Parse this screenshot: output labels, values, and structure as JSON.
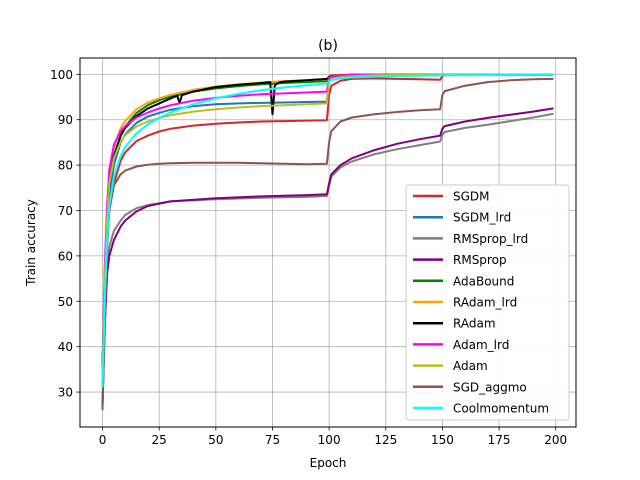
{
  "chart_data": {
    "type": "line",
    "title": "(b)",
    "xlabel": "Epoch",
    "ylabel": "Train accuracy",
    "xlim": [
      -9.95,
      208.95
    ],
    "ylim": [
      22.3,
      103.6
    ],
    "xticks": [
      0,
      25,
      50,
      75,
      100,
      125,
      150,
      175,
      200
    ],
    "yticks": [
      30,
      40,
      50,
      60,
      70,
      80,
      90,
      100
    ],
    "grid": true,
    "legend_position": "lower right",
    "series": [
      {
        "name": "SGDM",
        "color": "#d62728",
        "x": [
          0,
          1,
          2,
          3,
          5,
          8,
          10,
          15,
          20,
          25,
          30,
          40,
          50,
          60,
          70,
          80,
          90,
          99,
          100,
          101,
          105,
          110,
          120,
          130,
          140,
          149,
          150,
          151,
          160,
          180,
          199
        ],
        "y": [
          31,
          50,
          62,
          70,
          76,
          81,
          82.8,
          85.3,
          86.5,
          87.4,
          88,
          88.7,
          89.1,
          89.4,
          89.6,
          89.7,
          89.8,
          89.9,
          95.5,
          97.5,
          98.6,
          99,
          99.1,
          99,
          98.9,
          98.8,
          99.6,
          99.8,
          99.9,
          99.9,
          99.9
        ]
      },
      {
        "name": "SGDM_lrd",
        "color": "#1f77b4",
        "x": [
          0,
          1,
          2,
          3,
          5,
          8,
          10,
          15,
          20,
          25,
          30,
          40,
          50,
          60,
          70,
          80,
          90,
          99,
          100,
          101,
          105,
          110,
          120,
          150,
          199
        ],
        "y": [
          32,
          52,
          65,
          73,
          80,
          85,
          86.8,
          89.3,
          90.7,
          91.5,
          92.2,
          93,
          93.4,
          93.6,
          93.7,
          93.8,
          93.9,
          94,
          98.5,
          99.3,
          99.7,
          99.8,
          99.9,
          99.9,
          99.9
        ]
      },
      {
        "name": "RMSprop_lrd",
        "color": "#7f7f7f",
        "x": [
          0,
          1,
          2,
          3,
          5,
          8,
          10,
          15,
          20,
          30,
          50,
          70,
          90,
          99,
          100,
          101,
          105,
          110,
          120,
          130,
          140,
          149,
          150,
          151,
          160,
          170,
          180,
          190,
          199
        ],
        "y": [
          27,
          45,
          57,
          62,
          65.5,
          67.8,
          69,
          70.5,
          71.2,
          72,
          72.5,
          72.8,
          73,
          73.2,
          75.5,
          77.5,
          79.5,
          80.8,
          82.4,
          83.5,
          84.4,
          85.2,
          86.7,
          87.3,
          88.2,
          88.9,
          89.7,
          90.5,
          91.3
        ]
      },
      {
        "name": "RMSprop",
        "color": "#800080",
        "x": [
          0,
          1,
          2,
          3,
          5,
          8,
          10,
          15,
          20,
          30,
          50,
          70,
          90,
          99,
          100,
          101,
          105,
          110,
          120,
          130,
          140,
          149,
          150,
          151,
          160,
          170,
          180,
          190,
          199
        ],
        "y": [
          27,
          45,
          56,
          60,
          63.5,
          66.5,
          67.8,
          69.8,
          71,
          72,
          72.7,
          73.1,
          73.4,
          73.6,
          76,
          78,
          80,
          81.5,
          83.3,
          84.7,
          85.7,
          86.5,
          88,
          88.6,
          89.6,
          90.4,
          91.1,
          91.8,
          92.5
        ]
      },
      {
        "name": "AdaBound",
        "color": "#008000",
        "x": [
          0,
          1,
          2,
          3,
          5,
          8,
          10,
          15,
          20,
          25,
          30,
          40,
          50,
          60,
          70,
          80,
          90,
          99,
          100,
          101,
          105,
          110,
          120,
          150,
          199
        ],
        "y": [
          33,
          55,
          68,
          76,
          82,
          86.5,
          88.5,
          91.5,
          93.2,
          94.3,
          95.1,
          96.2,
          96.9,
          97.4,
          97.8,
          98.1,
          98.3,
          98.5,
          99.3,
          99.6,
          99.8,
          99.9,
          99.9,
          99.9,
          99.9
        ]
      },
      {
        "name": "RAdam_lrd",
        "color": "#ffa500",
        "x": [
          0,
          1,
          2,
          3,
          5,
          8,
          10,
          15,
          20,
          25,
          30,
          40,
          50,
          60,
          70,
          80,
          90,
          99,
          100,
          101,
          105,
          110,
          120,
          150,
          199
        ],
        "y": [
          34,
          57,
          70,
          78,
          84,
          88.2,
          89.7,
          92.3,
          93.8,
          94.7,
          95.5,
          96.6,
          97.3,
          97.8,
          98.2,
          98.5,
          98.7,
          98.9,
          99.6,
          99.8,
          99.9,
          99.9,
          99.9,
          99.9,
          99.9
        ]
      },
      {
        "name": "RAdam",
        "color": "#000000",
        "x": [
          0,
          1,
          2,
          3,
          5,
          8,
          10,
          15,
          20,
          25,
          30,
          33,
          34,
          35,
          40,
          50,
          60,
          70,
          74,
          75,
          76,
          78,
          80,
          90,
          99,
          100,
          101,
          105,
          110,
          120,
          150,
          199
        ],
        "y": [
          36,
          56,
          68,
          76,
          82,
          86.5,
          88.2,
          90.8,
          92.5,
          93.6,
          94.7,
          95.3,
          93.6,
          95.4,
          96.2,
          97.2,
          97.7,
          98.1,
          98.3,
          91.2,
          97.6,
          98.2,
          98.4,
          98.7,
          99,
          99.4,
          99.7,
          99.8,
          99.9,
          99.9,
          99.9,
          99.9
        ]
      },
      {
        "name": "Adam_lrd",
        "color": "#ff00ff",
        "x": [
          0,
          1,
          2,
          3,
          5,
          8,
          10,
          15,
          20,
          25,
          30,
          40,
          50,
          60,
          70,
          80,
          90,
          99,
          100,
          101,
          105,
          110,
          120,
          150,
          199
        ],
        "y": [
          34,
          58,
          71,
          79,
          84.5,
          87.5,
          88.6,
          90.5,
          91.6,
          92.5,
          93.2,
          94.2,
          94.8,
          95.3,
          95.6,
          95.8,
          96,
          96.2,
          99.2,
          99.6,
          99.8,
          99.9,
          99.9,
          99.9,
          99.9
        ]
      },
      {
        "name": "Adam",
        "color": "#bcbd22",
        "x": [
          0,
          1,
          2,
          3,
          5,
          8,
          10,
          15,
          20,
          25,
          30,
          40,
          50,
          60,
          70,
          80,
          90,
          99,
          100,
          101,
          105,
          110,
          120,
          150,
          199
        ],
        "y": [
          33,
          55,
          68,
          76,
          81.5,
          85.2,
          86.6,
          88.5,
          89.6,
          90.4,
          91,
          91.8,
          92.3,
          92.7,
          93,
          93.2,
          93.4,
          93.6,
          98.3,
          99,
          99.4,
          99.6,
          99.8,
          99.9,
          99.9
        ]
      },
      {
        "name": "SGD_aggmo",
        "color": "#8c564b",
        "x": [
          0,
          1,
          2,
          3,
          5,
          8,
          10,
          15,
          20,
          25,
          30,
          40,
          50,
          60,
          70,
          80,
          90,
          99,
          100,
          101,
          105,
          110,
          120,
          130,
          140,
          149,
          150,
          151,
          160,
          170,
          180,
          190,
          199
        ],
        "y": [
          26,
          48,
          63,
          70,
          75.5,
          78,
          78.8,
          79.7,
          80.1,
          80.3,
          80.4,
          80.5,
          80.5,
          80.5,
          80.4,
          80.3,
          80.2,
          80.3,
          85,
          87.5,
          89.6,
          90.5,
          91.2,
          91.7,
          92.1,
          92.3,
          95.5,
          96.3,
          97.5,
          98.3,
          98.7,
          98.9,
          99
        ]
      },
      {
        "name": "Coolmomentum",
        "color": "#00ffff",
        "x": [
          0,
          1,
          2,
          3,
          5,
          8,
          10,
          15,
          20,
          25,
          30,
          40,
          50,
          60,
          70,
          80,
          90,
          99,
          100,
          101,
          105,
          110,
          120,
          130,
          140,
          150,
          160,
          180,
          199
        ],
        "y": [
          31,
          50,
          63,
          71,
          77.5,
          82,
          84,
          87,
          89,
          90.4,
          91.6,
          93.4,
          94.7,
          95.7,
          96.5,
          97.1,
          97.6,
          98,
          98.5,
          98.8,
          99.1,
          99.3,
          99.5,
          99.6,
          99.7,
          99.8,
          99.8,
          99.9,
          99.9
        ]
      }
    ]
  }
}
